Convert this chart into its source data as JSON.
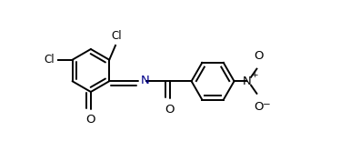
{
  "bg_color": "#ffffff",
  "line_color": "#000000",
  "nitrogen_color": "#00008b",
  "lw": 1.4,
  "font_size": 8.5,
  "figsize": [
    3.85,
    1.55
  ],
  "dpi": 100,
  "xlim": [
    0.0,
    7.8
  ],
  "ylim": [
    -1.2,
    2.2
  ]
}
